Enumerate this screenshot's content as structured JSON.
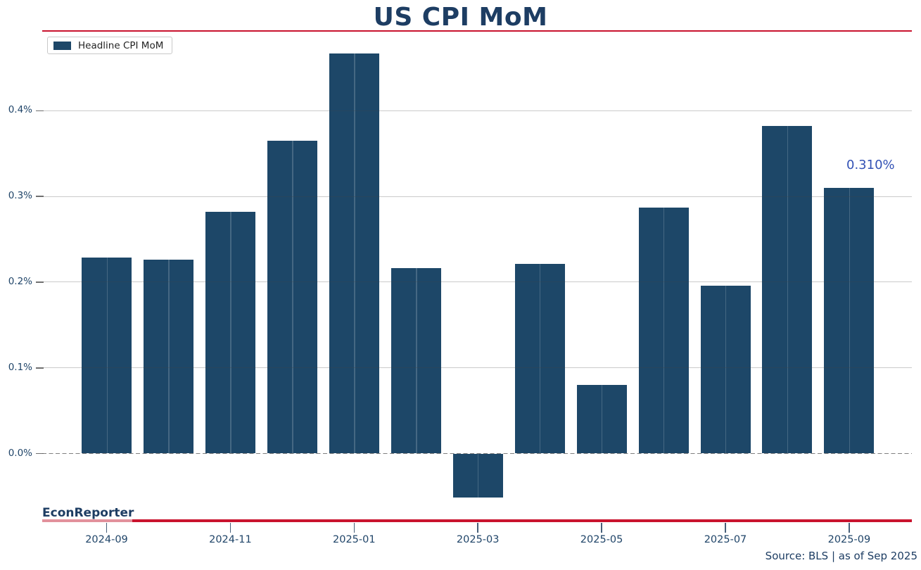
{
  "title": "US CPI MoM",
  "legend": {
    "label": "Headline CPI MoM",
    "swatch_color": "#1d4768"
  },
  "annotation": {
    "text": "0.310%",
    "color": "#3352b5"
  },
  "watermark": "EconReporter",
  "source": "Source: BLS | as of Sep 2025",
  "colors": {
    "bar": "#1d4768",
    "navy_text": "#1d3d63",
    "tick_text": "#1f4468",
    "red_rule": "#c9132e",
    "pink_underline": "#e2919c"
  },
  "y_axis": {
    "tick_labels": [
      "0.4%",
      "0.3%",
      "0.2%",
      "0.1%",
      "0.0%"
    ],
    "tick_values": [
      0.4,
      0.3,
      0.2,
      0.1,
      0.0
    ]
  },
  "x_axis": {
    "tick_labels": [
      "2024-09",
      "2024-11",
      "2025-01",
      "2025-03",
      "2025-05",
      "2025-07",
      "2025-09"
    ],
    "labeled_every_n_months": 2
  },
  "chart_data": {
    "type": "bar",
    "title": "US CPI MoM",
    "categories": [
      "2024-09",
      "2024-10",
      "2024-11",
      "2024-12",
      "2025-01",
      "2025-02",
      "2025-03",
      "2025-04",
      "2025-05",
      "2025-06",
      "2025-07",
      "2025-08",
      "2025-09"
    ],
    "series": [
      {
        "name": "Headline CPI MoM",
        "values": [
          0.229,
          0.226,
          0.282,
          0.365,
          0.467,
          0.216,
          -0.051,
          0.221,
          0.08,
          0.287,
          0.196,
          0.382,
          0.31
        ]
      }
    ],
    "unit": "percent",
    "ylim": [
      -0.076,
      0.49
    ],
    "grid": "horizontal",
    "zero_line": "dashed",
    "legend_position": "upper-left",
    "last_value_label": "0.310%"
  }
}
